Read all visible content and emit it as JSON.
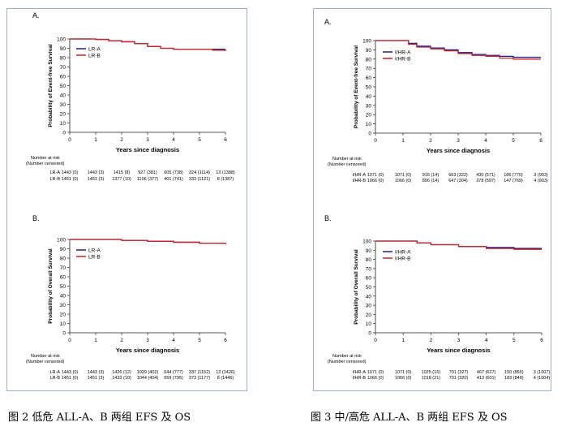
{
  "captions": {
    "left": "图 2 低危 ALL-A、B 两组 EFS 及 OS",
    "right": "图 3 中/高危 ALL-A、B 两组 EFS 及 OS"
  },
  "colors": {
    "series_a": "#1a1a99",
    "series_b": "#cc2222",
    "axis": "#222222"
  },
  "chart_data": [
    {
      "type": "line",
      "panel_label": "A.",
      "ylabel": "Probability of Event-free Survival",
      "xlabel": "Years since diagnosis",
      "xlim": [
        0,
        6
      ],
      "ylim": [
        0,
        100
      ],
      "x_ticks": [
        "0",
        "1",
        "2",
        "3",
        "4",
        "5",
        "6"
      ],
      "y_ticks": [
        "0",
        "10",
        "20",
        "30",
        "40",
        "50",
        "60",
        "70",
        "80",
        "90",
        "100"
      ],
      "series": [
        {
          "name": "LR-A",
          "x": [
            0,
            1,
            1.5,
            2,
            2.5,
            3,
            3.5,
            4,
            4.5,
            5,
            5.5,
            6
          ],
          "y": [
            100,
            99.5,
            98,
            97,
            95,
            92,
            90,
            89,
            89,
            89,
            89,
            89
          ]
        },
        {
          "name": "LR-B",
          "x": [
            0,
            1,
            1.5,
            2,
            2.5,
            3,
            3.5,
            4,
            4.5,
            5,
            5.5,
            6
          ],
          "y": [
            100,
            99.5,
            98,
            97,
            95,
            92,
            90,
            89,
            89,
            89,
            88,
            87
          ]
        }
      ],
      "risk_header": [
        "Number at risk",
        "(Number censored)"
      ],
      "risk_rows": [
        {
          "label": "LR-A",
          "values": [
            "1443 (0)",
            "1443 (3)",
            "1415 (8)",
            "927 (381)",
            "605 (738)",
            "324 (1114)",
            "13 (1388)"
          ]
        },
        {
          "label": "LR-B",
          "values": [
            "1451 (0)",
            "1451 (3)",
            "1377 (10)",
            "1106 (377)",
            "401 (741)",
            "333 (1121)",
            "8 (1387)"
          ]
        }
      ]
    },
    {
      "type": "line",
      "panel_label": "B.",
      "ylabel": "Probability of Overall Survival",
      "xlabel": "Years since diagnosis",
      "xlim": [
        0,
        6
      ],
      "ylim": [
        0,
        100
      ],
      "x_ticks": [
        "0",
        "1",
        "2",
        "3",
        "4",
        "5",
        "6"
      ],
      "y_ticks": [
        "0",
        "10",
        "20",
        "30",
        "40",
        "50",
        "60",
        "70",
        "80",
        "90",
        "100"
      ],
      "series": [
        {
          "name": "LR-A",
          "x": [
            0,
            1,
            2,
            3,
            4,
            5,
            6
          ],
          "y": [
            100,
            100,
            99,
            98,
            97,
            96,
            95
          ]
        },
        {
          "name": "LR-B",
          "x": [
            0,
            1,
            2,
            3,
            4,
            5,
            6
          ],
          "y": [
            100,
            100,
            99,
            98,
            97,
            96,
            95
          ]
        }
      ],
      "risk_header": [
        "Number at risk",
        "(Number censored)"
      ],
      "risk_rows": [
        {
          "label": "LR-A",
          "values": [
            "1443 (0)",
            "1443 (3)",
            "1426 (12)",
            "1029 (402)",
            "644 (777)",
            "337 (1152)",
            "12 (1426)"
          ]
        },
        {
          "label": "LR-B",
          "values": [
            "1451 (0)",
            "1451 (3)",
            "1433 (10)",
            "1044 (404)",
            "659 (795)",
            "373 (1177)",
            "8 (1446)"
          ]
        }
      ]
    },
    {
      "type": "line",
      "panel_label": "A.",
      "ylabel": "Probability of Event-free Survival",
      "xlabel": "Years since diagnosis",
      "xlim": [
        0,
        6
      ],
      "ylim": [
        0,
        100
      ],
      "x_ticks": [
        "0",
        "1",
        "2",
        "3",
        "4",
        "5",
        "6"
      ],
      "y_ticks": [
        "0",
        "10",
        "20",
        "30",
        "40",
        "50",
        "60",
        "70",
        "80",
        "90",
        "100"
      ],
      "series": [
        {
          "name": "I/HR-A",
          "x": [
            0,
            0.5,
            1,
            1.2,
            1.5,
            2,
            2.5,
            3,
            3.5,
            4,
            4.5,
            5,
            5.5,
            6
          ],
          "y": [
            100,
            100,
            100,
            97,
            94,
            92,
            90,
            87,
            85,
            84,
            83,
            82,
            82,
            82
          ]
        },
        {
          "name": "I/HR-B",
          "x": [
            0,
            0.5,
            1,
            1.2,
            1.5,
            2,
            2.5,
            3,
            3.5,
            4,
            4.5,
            5,
            5.5,
            6
          ],
          "y": [
            100,
            100,
            100,
            96,
            93,
            91,
            89,
            86,
            84,
            83,
            81,
            80,
            80,
            80
          ]
        }
      ],
      "risk_header": [
        "Number at risk",
        "(Number censored)"
      ],
      "risk_rows": [
        {
          "label": "I/HR-A",
          "values": [
            "1071 (0)",
            "1071 (0)",
            "916 (14)",
            "663 (322)",
            "430 (571)",
            "186 (770)",
            "3 (903)"
          ]
        },
        {
          "label": "I/HR-B",
          "values": [
            "1066 (0)",
            "1066 (0)",
            "896 (14)",
            "647 (304)",
            "378 (597)",
            "147 (769)",
            "4 (903)"
          ]
        }
      ]
    },
    {
      "type": "line",
      "panel_label": "B.",
      "ylabel": "Probability of Overall Survival",
      "xlabel": "Years since diagnosis",
      "xlim": [
        0,
        6
      ],
      "ylim": [
        0,
        100
      ],
      "x_ticks": [
        "0",
        "1",
        "2",
        "3",
        "4",
        "5",
        "6"
      ],
      "y_ticks": [
        "0",
        "10",
        "20",
        "30",
        "40",
        "50",
        "60",
        "70",
        "80",
        "90",
        "100"
      ],
      "series": [
        {
          "name": "I/HR-A",
          "x": [
            0,
            1,
            1.5,
            2,
            3,
            4,
            5,
            6
          ],
          "y": [
            100,
            100,
            98,
            96,
            94,
            93,
            92,
            92
          ]
        },
        {
          "name": "I/HR-B",
          "x": [
            0,
            1,
            1.5,
            2,
            3,
            4,
            5,
            6
          ],
          "y": [
            100,
            100,
            98,
            96,
            94,
            92,
            91,
            91
          ]
        }
      ],
      "risk_header": [
        "Number at risk",
        "(Number censored)"
      ],
      "risk_rows": [
        {
          "label": "I/HR-A",
          "values": [
            "1071 (0)",
            "1071 (0)",
            "1025 (16)",
            "701 (327)",
            "467 (627)",
            "150 (855)",
            "3 (1007)"
          ]
        },
        {
          "label": "I/HR-B",
          "values": [
            "1066 (0)",
            "1066 (0)",
            "1018 (21)",
            "701 (320)",
            "413 (601)",
            "183 (848)",
            "4 (1004)"
          ]
        }
      ]
    }
  ]
}
